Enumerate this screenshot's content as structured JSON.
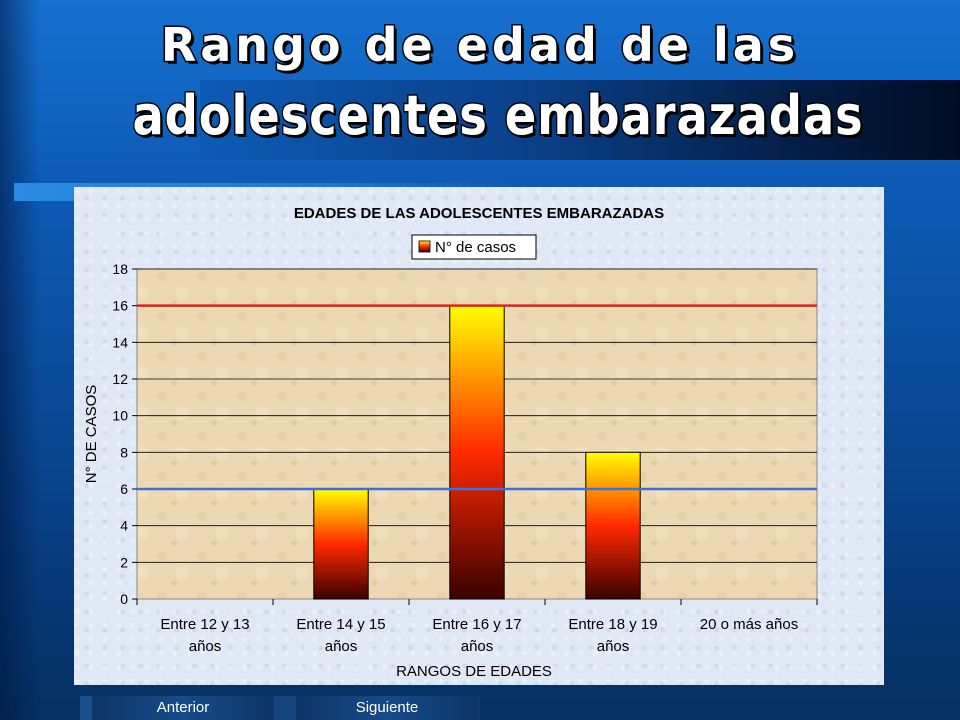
{
  "slide": {
    "title_line1": "Rango de edad de las",
    "title_line2": "adolescentes embarazadas"
  },
  "nav": {
    "prev_label": "Anterior",
    "next_label": "Siguiente"
  },
  "colors": {
    "background_blue": "#0d5bb5",
    "plot_background": "#ecd9b4",
    "bar_top": "#ffff00",
    "bar_mid": "#ff2a00",
    "bar_bottom": "#3a0000",
    "line_red": "#e02020",
    "line_blue": "#3a6fe0"
  },
  "chart_data": {
    "type": "bar",
    "title": "EDADES DE LAS ADOLESCENTES EMBARAZADAS",
    "xlabel": "RANGOS DE EDADES",
    "ylabel": "N° DE CASOS",
    "categories": [
      [
        "Entre 12 y 13",
        "años"
      ],
      [
        "Entre 14 y 15",
        "años"
      ],
      [
        "Entre 16 y 17",
        "años"
      ],
      [
        "Entre 18 y 19",
        "años"
      ],
      [
        "20 o más años"
      ]
    ],
    "series": [
      {
        "name": "N° de casos",
        "values": [
          0,
          6,
          16,
          8,
          0
        ]
      }
    ],
    "ylim": [
      0,
      18
    ],
    "yticks": [
      "0",
      "2",
      "4",
      "6",
      "8",
      "10",
      "12",
      "14",
      "16",
      "18"
    ],
    "reference_lines": [
      {
        "value": 16,
        "color": "red"
      },
      {
        "value": 6,
        "color": "blue"
      }
    ],
    "grid": true,
    "legend_position": "top-center"
  }
}
